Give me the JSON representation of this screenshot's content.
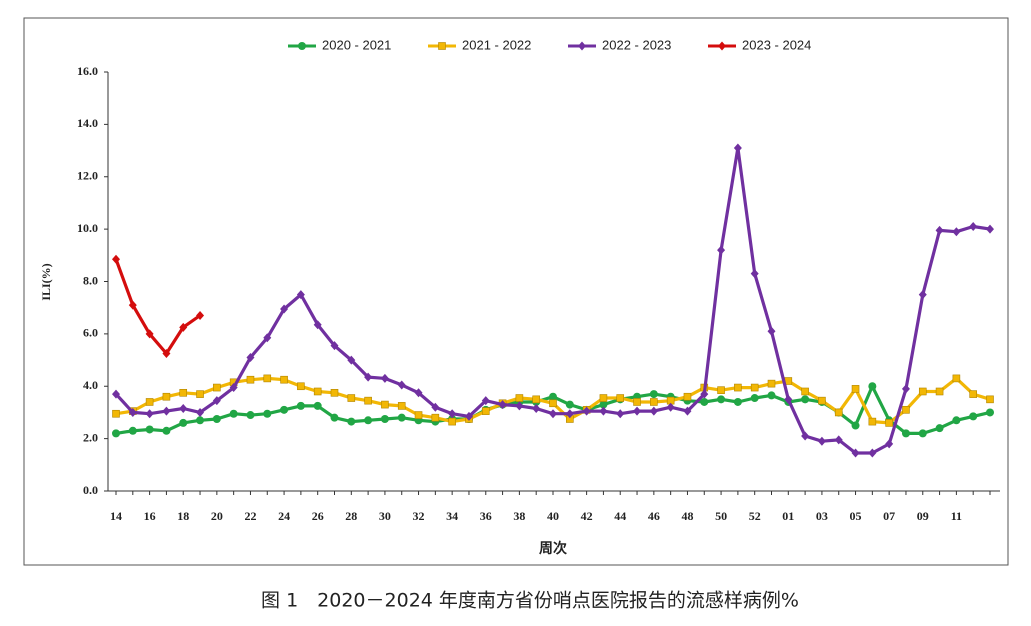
{
  "chart_data": {
    "type": "line",
    "caption": "图 1　2020－2024 年度南方省份哨点医院报告的流感样病例%",
    "x_label": "周次",
    "y_label": "ILI(%)",
    "categories": [
      "14",
      null,
      "16",
      null,
      "18",
      null,
      "20",
      null,
      "22",
      null,
      "24",
      null,
      "26",
      null,
      "28",
      null,
      "30",
      null,
      "32",
      null,
      "34",
      null,
      "36",
      null,
      "38",
      null,
      "40",
      null,
      "42",
      null,
      "44",
      null,
      "46",
      null,
      "48",
      null,
      "50",
      null,
      "52",
      null,
      "01",
      null,
      "03",
      null,
      "05",
      null,
      "07",
      null,
      "09",
      null,
      "11",
      null,
      null
    ],
    "ylim": [
      0,
      16
    ],
    "yticks": [
      {
        "value": 0,
        "label": "0.0"
      },
      {
        "value": 2,
        "label": "2.0"
      },
      {
        "value": 4,
        "label": "4.0"
      },
      {
        "value": 6,
        "label": "6.0"
      },
      {
        "value": 8,
        "label": "8.0"
      },
      {
        "value": 10,
        "label": "10.0"
      },
      {
        "value": 12,
        "label": "12.0"
      },
      {
        "value": 14,
        "label": "14.0"
      },
      {
        "value": 16,
        "label": "16.0"
      }
    ],
    "legend": "top",
    "series": [
      {
        "name": "2020 - 2021",
        "color": "#21a645",
        "marker": "circle",
        "values": [
          2.2,
          2.3,
          2.35,
          2.3,
          2.6,
          2.7,
          2.75,
          2.95,
          2.9,
          2.95,
          3.1,
          3.25,
          3.25,
          2.8,
          2.65,
          2.7,
          2.75,
          2.8,
          2.7,
          2.65,
          2.75,
          2.75,
          3.1,
          3.3,
          3.4,
          3.4,
          3.6,
          3.3,
          3.1,
          3.3,
          3.5,
          3.6,
          3.7,
          3.6,
          3.45,
          3.4,
          3.5,
          3.4,
          3.55,
          3.65,
          3.4,
          3.5,
          3.4,
          3.0,
          2.5,
          4.0,
          2.7,
          2.2,
          2.2,
          2.4,
          2.7,
          2.85,
          3.0
        ]
      },
      {
        "name": "2021 - 2022",
        "color": "#f2b705",
        "marker": "square",
        "values": [
          2.95,
          3.05,
          3.4,
          3.6,
          3.75,
          3.7,
          3.95,
          4.15,
          4.25,
          4.3,
          4.25,
          4.0,
          3.8,
          3.75,
          3.55,
          3.45,
          3.3,
          3.25,
          2.9,
          2.8,
          2.65,
          2.75,
          3.05,
          3.35,
          3.55,
          3.5,
          3.35,
          2.75,
          3.1,
          3.55,
          3.55,
          3.4,
          3.4,
          3.45,
          3.6,
          3.95,
          3.85,
          3.95,
          3.95,
          4.1,
          4.2,
          3.8,
          3.45,
          3.0,
          3.9,
          2.65,
          2.6,
          3.1,
          3.8,
          3.8,
          4.3,
          3.7,
          3.5
        ]
      },
      {
        "name": "2022 - 2023",
        "color": "#7030a0",
        "marker": "diamond",
        "values": [
          3.7,
          3.0,
          2.95,
          3.05,
          3.15,
          3.0,
          3.45,
          3.95,
          5.1,
          5.85,
          6.95,
          7.5,
          6.35,
          5.55,
          5.0,
          4.35,
          4.3,
          4.05,
          3.75,
          3.2,
          2.95,
          2.85,
          3.45,
          3.3,
          3.25,
          3.15,
          2.95,
          2.95,
          3.05,
          3.05,
          2.95,
          3.05,
          3.05,
          3.2,
          3.05,
          3.7,
          9.2,
          13.1,
          8.3,
          6.1,
          3.5,
          2.1,
          1.9,
          1.95,
          1.45,
          1.45,
          1.8,
          3.9,
          7.5,
          9.95,
          9.9,
          10.1,
          10.0
        ]
      },
      {
        "name": "2023 - 2024",
        "color": "#d40d0d",
        "marker": "diamond",
        "values": [
          8.85,
          7.1,
          6.0,
          5.25,
          6.25,
          6.7,
          null,
          null,
          null,
          null,
          null,
          null,
          null,
          null,
          null,
          null,
          null,
          null,
          null,
          null,
          null,
          null,
          null,
          null,
          null,
          null,
          null,
          null,
          null,
          null,
          null,
          null,
          null,
          null,
          null,
          null,
          null,
          null,
          null,
          null,
          null,
          null,
          null,
          null,
          null,
          null,
          null,
          null,
          null,
          null,
          null,
          null,
          null
        ]
      }
    ]
  }
}
